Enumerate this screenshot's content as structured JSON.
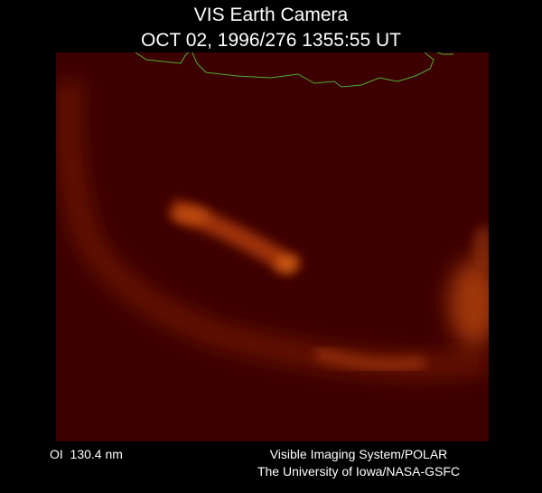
{
  "header": {
    "title": "VIS Earth Camera",
    "timestamp": "OCT 02, 1996/276 1355:55 UT"
  },
  "footer": {
    "wavelength": "OI  130.4 nm",
    "credits": [
      "Visible Imaging System/POLAR",
      "The University of Iowa/NASA-GSFC"
    ]
  }
}
